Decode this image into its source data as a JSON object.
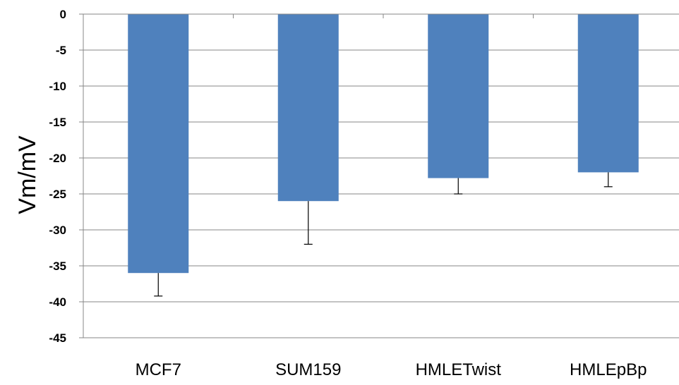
{
  "chart_data": {
    "type": "bar",
    "title": "",
    "xlabel": "",
    "ylabel": "Vm/mV",
    "categories": [
      "MCF7",
      "SUM159",
      "HMLETwist",
      "HMLEpBp"
    ],
    "series": [
      {
        "values": [
          -36,
          -26,
          -22.8,
          -22
        ],
        "error": [
          3.2,
          6,
          2.2,
          2
        ]
      }
    ],
    "ylim": [
      -45,
      0
    ],
    "yticks": [
      0,
      -5,
      -10,
      -15,
      -20,
      -25,
      -30,
      -35,
      -40,
      -45
    ],
    "grid": true,
    "legend": "none",
    "colors": {
      "bar": "#4f81bd",
      "grid": "#878787",
      "axis": "#878787"
    }
  }
}
